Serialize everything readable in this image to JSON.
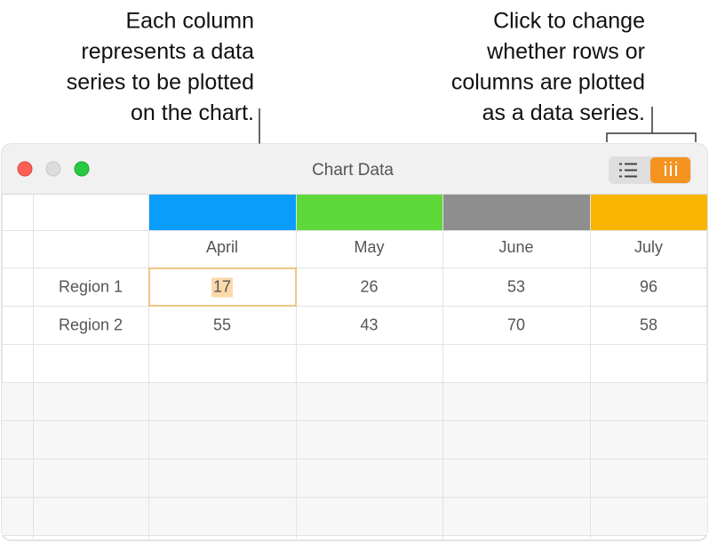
{
  "annotations": [
    {
      "lines": [
        "Each column",
        "represents a data",
        "series to be plotted",
        "on the chart."
      ]
    },
    {
      "lines": [
        "Click to change",
        "whether rows or",
        "columns are plotted",
        "as a data series."
      ]
    }
  ],
  "window": {
    "title": "Chart Data"
  },
  "table": {
    "columns": [
      {
        "name": "April",
        "color": "#0a9dfb"
      },
      {
        "name": "May",
        "color": "#5fd83a"
      },
      {
        "name": "June",
        "color": "#8e8e8e"
      },
      {
        "name": "July",
        "color": "#f7b500"
      }
    ],
    "rows": [
      {
        "label": "Region 1",
        "values": [
          17,
          26,
          53,
          96
        ]
      },
      {
        "label": "Region 2",
        "values": [
          55,
          43,
          70,
          58
        ]
      }
    ]
  }
}
